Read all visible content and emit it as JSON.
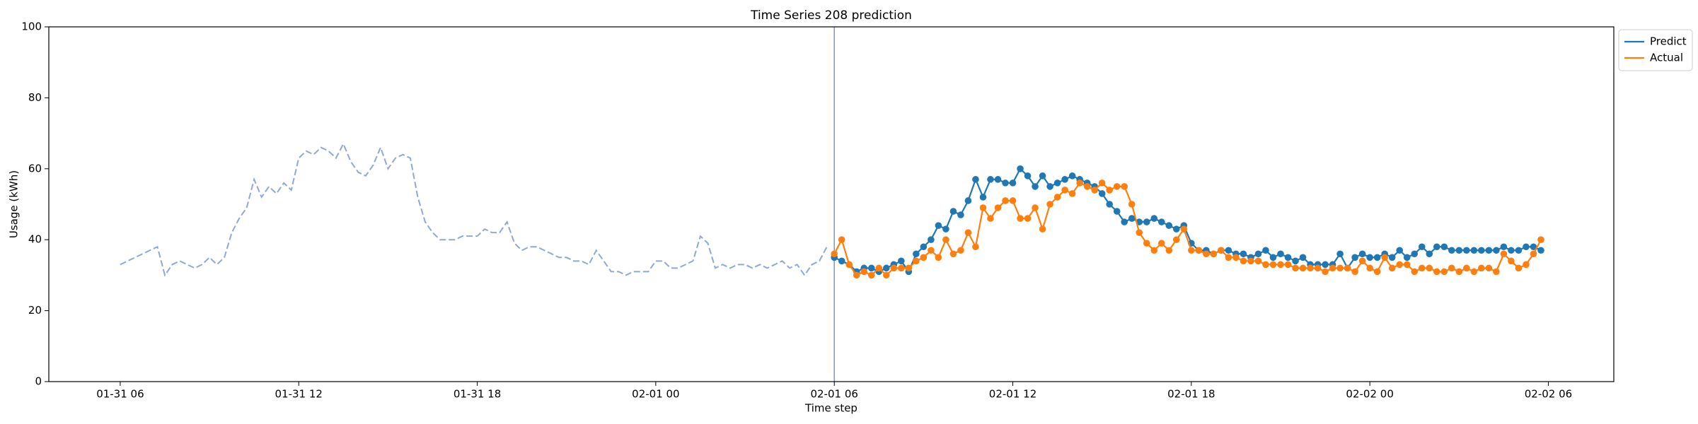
{
  "chart_data": {
    "type": "line",
    "title": "Time Series 208 prediction",
    "xlabel": "Time step",
    "ylabel": "Usage (kWh)",
    "xlim": [
      "01-31 03:36",
      "02-02 08:12"
    ],
    "xticks": [
      "01-31 06",
      "01-31 12",
      "01-31 18",
      "02-01 00",
      "02-01 06",
      "02-01 12",
      "02-01 18",
      "02-02 00",
      "02-02 06"
    ],
    "ylim": [
      0,
      100
    ],
    "yticks": [
      0,
      20,
      40,
      60,
      80,
      100
    ],
    "grid": false,
    "legend": "upper right outside",
    "vline": {
      "x": "02-01 06:00",
      "color": "#8096c8"
    },
    "series": [
      {
        "color": "#8fa9d0",
        "dashed": true,
        "markers": false,
        "x": [
          "01-31 06:00",
          "01-31 06:15",
          "01-31 06:30",
          "01-31 06:45",
          "01-31 07:00",
          "01-31 07:15",
          "01-31 07:30",
          "01-31 07:45",
          "01-31 08:00",
          "01-31 08:15",
          "01-31 08:30",
          "01-31 08:45",
          "01-31 09:00",
          "01-31 09:15",
          "01-31 09:30",
          "01-31 09:45",
          "01-31 10:00",
          "01-31 10:15",
          "01-31 10:30",
          "01-31 10:45",
          "01-31 11:00",
          "01-31 11:15",
          "01-31 11:30",
          "01-31 11:45",
          "01-31 12:00",
          "01-31 12:15",
          "01-31 12:30",
          "01-31 12:45",
          "01-31 13:00",
          "01-31 13:15",
          "01-31 13:30",
          "01-31 13:45",
          "01-31 14:00",
          "01-31 14:15",
          "01-31 14:30",
          "01-31 14:45",
          "01-31 15:00",
          "01-31 15:15",
          "01-31 15:30",
          "01-31 15:45",
          "01-31 16:00",
          "01-31 16:15",
          "01-31 16:30",
          "01-31 16:45",
          "01-31 17:00",
          "01-31 17:15",
          "01-31 17:30",
          "01-31 17:45",
          "01-31 18:00",
          "01-31 18:15",
          "01-31 18:30",
          "01-31 18:45",
          "01-31 19:00",
          "01-31 19:15",
          "01-31 19:30",
          "01-31 19:45",
          "01-31 20:00",
          "01-31 20:15",
          "01-31 20:30",
          "01-31 20:45",
          "01-31 21:00",
          "01-31 21:15",
          "01-31 21:30",
          "01-31 21:45",
          "01-31 22:00",
          "01-31 22:15",
          "01-31 22:30",
          "01-31 22:45",
          "01-31 23:00",
          "01-31 23:15",
          "01-31 23:30",
          "01-31 23:45",
          "02-01 00:00",
          "02-01 00:15",
          "02-01 00:30",
          "02-01 00:45",
          "02-01 01:00",
          "02-01 01:15",
          "02-01 01:30",
          "02-01 01:45",
          "02-01 02:00",
          "02-01 02:15",
          "02-01 02:30",
          "02-01 02:45",
          "02-01 03:00",
          "02-01 03:15",
          "02-01 03:30",
          "02-01 03:45",
          "02-01 04:00",
          "02-01 04:15",
          "02-01 04:30",
          "02-01 04:45",
          "02-01 05:00",
          "02-01 05:15",
          "02-01 05:30",
          "02-01 05:45"
        ],
        "values": [
          33,
          34,
          35,
          36,
          37,
          38,
          30,
          33,
          34,
          33,
          32,
          33,
          35,
          33,
          35,
          42,
          46,
          49,
          57,
          52,
          55,
          53,
          56,
          54,
          63,
          65,
          64,
          66,
          65,
          63,
          67,
          62,
          59,
          58,
          61,
          66,
          60,
          63,
          64,
          63,
          52,
          45,
          42,
          40,
          40,
          40,
          41,
          41,
          41,
          43,
          42,
          42,
          45,
          39,
          37,
          38,
          38,
          37,
          36,
          35,
          35,
          34,
          34,
          33,
          37,
          34,
          31,
          31,
          30,
          31,
          31,
          31,
          34,
          34,
          32,
          32,
          33,
          34,
          41,
          39,
          32,
          33,
          32,
          33,
          33,
          32,
          33,
          32,
          33,
          34,
          32,
          33,
          30,
          33,
          34,
          38
        ]
      },
      {
        "name": "Predict",
        "color": "#1f77b4",
        "dashed": false,
        "markers": true,
        "x": [
          "02-01 06:00",
          "02-01 06:15",
          "02-01 06:30",
          "02-01 06:45",
          "02-01 07:00",
          "02-01 07:15",
          "02-01 07:30",
          "02-01 07:45",
          "02-01 08:00",
          "02-01 08:15",
          "02-01 08:30",
          "02-01 08:45",
          "02-01 09:00",
          "02-01 09:15",
          "02-01 09:30",
          "02-01 09:45",
          "02-01 10:00",
          "02-01 10:15",
          "02-01 10:30",
          "02-01 10:45",
          "02-01 11:00",
          "02-01 11:15",
          "02-01 11:30",
          "02-01 11:45",
          "02-01 12:00",
          "02-01 12:15",
          "02-01 12:30",
          "02-01 12:45",
          "02-01 13:00",
          "02-01 13:15",
          "02-01 13:30",
          "02-01 13:45",
          "02-01 14:00",
          "02-01 14:15",
          "02-01 14:30",
          "02-01 14:45",
          "02-01 15:00",
          "02-01 15:15",
          "02-01 15:30",
          "02-01 15:45",
          "02-01 16:00",
          "02-01 16:15",
          "02-01 16:30",
          "02-01 16:45",
          "02-01 17:00",
          "02-01 17:15",
          "02-01 17:30",
          "02-01 17:45",
          "02-01 18:00",
          "02-01 18:15",
          "02-01 18:30",
          "02-01 18:45",
          "02-01 19:00",
          "02-01 19:15",
          "02-01 19:30",
          "02-01 19:45",
          "02-01 20:00",
          "02-01 20:15",
          "02-01 20:30",
          "02-01 20:45",
          "02-01 21:00",
          "02-01 21:15",
          "02-01 21:30",
          "02-01 21:45",
          "02-01 22:00",
          "02-01 22:15",
          "02-01 22:30",
          "02-01 22:45",
          "02-01 23:00",
          "02-01 23:15",
          "02-01 23:30",
          "02-01 23:45",
          "02-02 00:00",
          "02-02 00:15",
          "02-02 00:30",
          "02-02 00:45",
          "02-02 01:00",
          "02-02 01:15",
          "02-02 01:30",
          "02-02 01:45",
          "02-02 02:00",
          "02-02 02:15",
          "02-02 02:30",
          "02-02 02:45",
          "02-02 03:00",
          "02-02 03:15",
          "02-02 03:30",
          "02-02 03:45",
          "02-02 04:00",
          "02-02 04:15",
          "02-02 04:30",
          "02-02 04:45",
          "02-02 05:00",
          "02-02 05:15",
          "02-02 05:30",
          "02-02 05:45"
        ],
        "values": [
          35,
          34,
          33,
          31,
          32,
          32,
          31,
          32,
          33,
          34,
          31,
          36,
          38,
          40,
          44,
          43,
          48,
          47,
          51,
          57,
          52,
          57,
          57,
          56,
          56,
          60,
          58,
          55,
          58,
          55,
          56,
          57,
          58,
          57,
          56,
          55,
          53,
          50,
          48,
          45,
          46,
          45,
          45,
          46,
          45,
          44,
          43,
          44,
          39,
          37,
          37,
          36,
          37,
          37,
          36,
          36,
          35,
          36,
          37,
          35,
          36,
          35,
          34,
          35,
          33,
          33,
          33,
          33,
          36,
          32,
          35,
          36,
          35,
          35,
          36,
          35,
          37,
          35,
          36,
          38,
          36,
          38,
          38,
          37,
          37,
          37,
          37,
          37,
          37,
          37,
          38,
          37,
          37,
          38,
          38,
          37
        ]
      },
      {
        "name": "Actual",
        "color": "#ff7f0e",
        "dashed": false,
        "markers": true,
        "x": [
          "02-01 06:00",
          "02-01 06:15",
          "02-01 06:30",
          "02-01 06:45",
          "02-01 07:00",
          "02-01 07:15",
          "02-01 07:30",
          "02-01 07:45",
          "02-01 08:00",
          "02-01 08:15",
          "02-01 08:30",
          "02-01 08:45",
          "02-01 09:00",
          "02-01 09:15",
          "02-01 09:30",
          "02-01 09:45",
          "02-01 10:00",
          "02-01 10:15",
          "02-01 10:30",
          "02-01 10:45",
          "02-01 11:00",
          "02-01 11:15",
          "02-01 11:30",
          "02-01 11:45",
          "02-01 12:00",
          "02-01 12:15",
          "02-01 12:30",
          "02-01 12:45",
          "02-01 13:00",
          "02-01 13:15",
          "02-01 13:30",
          "02-01 13:45",
          "02-01 14:00",
          "02-01 14:15",
          "02-01 14:30",
          "02-01 14:45",
          "02-01 15:00",
          "02-01 15:15",
          "02-01 15:30",
          "02-01 15:45",
          "02-01 16:00",
          "02-01 16:15",
          "02-01 16:30",
          "02-01 16:45",
          "02-01 17:00",
          "02-01 17:15",
          "02-01 17:30",
          "02-01 17:45",
          "02-01 18:00",
          "02-01 18:15",
          "02-01 18:30",
          "02-01 18:45",
          "02-01 19:00",
          "02-01 19:15",
          "02-01 19:30",
          "02-01 19:45",
          "02-01 20:00",
          "02-01 20:15",
          "02-01 20:30",
          "02-01 20:45",
          "02-01 21:00",
          "02-01 21:15",
          "02-01 21:30",
          "02-01 21:45",
          "02-01 22:00",
          "02-01 22:15",
          "02-01 22:30",
          "02-01 22:45",
          "02-01 23:00",
          "02-01 23:15",
          "02-01 23:30",
          "02-01 23:45",
          "02-02 00:00",
          "02-02 00:15",
          "02-02 00:30",
          "02-02 00:45",
          "02-02 01:00",
          "02-02 01:15",
          "02-02 01:30",
          "02-02 01:45",
          "02-02 02:00",
          "02-02 02:15",
          "02-02 02:30",
          "02-02 02:45",
          "02-02 03:00",
          "02-02 03:15",
          "02-02 03:30",
          "02-02 03:45",
          "02-02 04:00",
          "02-02 04:15",
          "02-02 04:30",
          "02-02 04:45",
          "02-02 05:00",
          "02-02 05:15",
          "02-02 05:30",
          "02-02 05:45"
        ],
        "values": [
          36,
          40,
          33,
          30,
          31,
          30,
          32,
          30,
          32,
          32,
          32,
          34,
          35,
          37,
          35,
          40,
          36,
          37,
          42,
          38,
          49,
          46,
          49,
          51,
          51,
          46,
          46,
          49,
          43,
          50,
          52,
          54,
          53,
          56,
          55,
          54,
          56,
          54,
          55,
          55,
          50,
          42,
          39,
          37,
          39,
          37,
          40,
          43,
          37,
          37,
          36,
          36,
          37,
          35,
          35,
          34,
          34,
          34,
          33,
          33,
          33,
          33,
          32,
          32,
          32,
          32,
          31,
          32,
          32,
          32,
          31,
          34,
          32,
          31,
          35,
          32,
          33,
          33,
          31,
          32,
          32,
          31,
          31,
          32,
          31,
          32,
          31,
          32,
          32,
          31,
          36,
          34,
          32,
          33,
          36,
          40
        ]
      }
    ]
  }
}
